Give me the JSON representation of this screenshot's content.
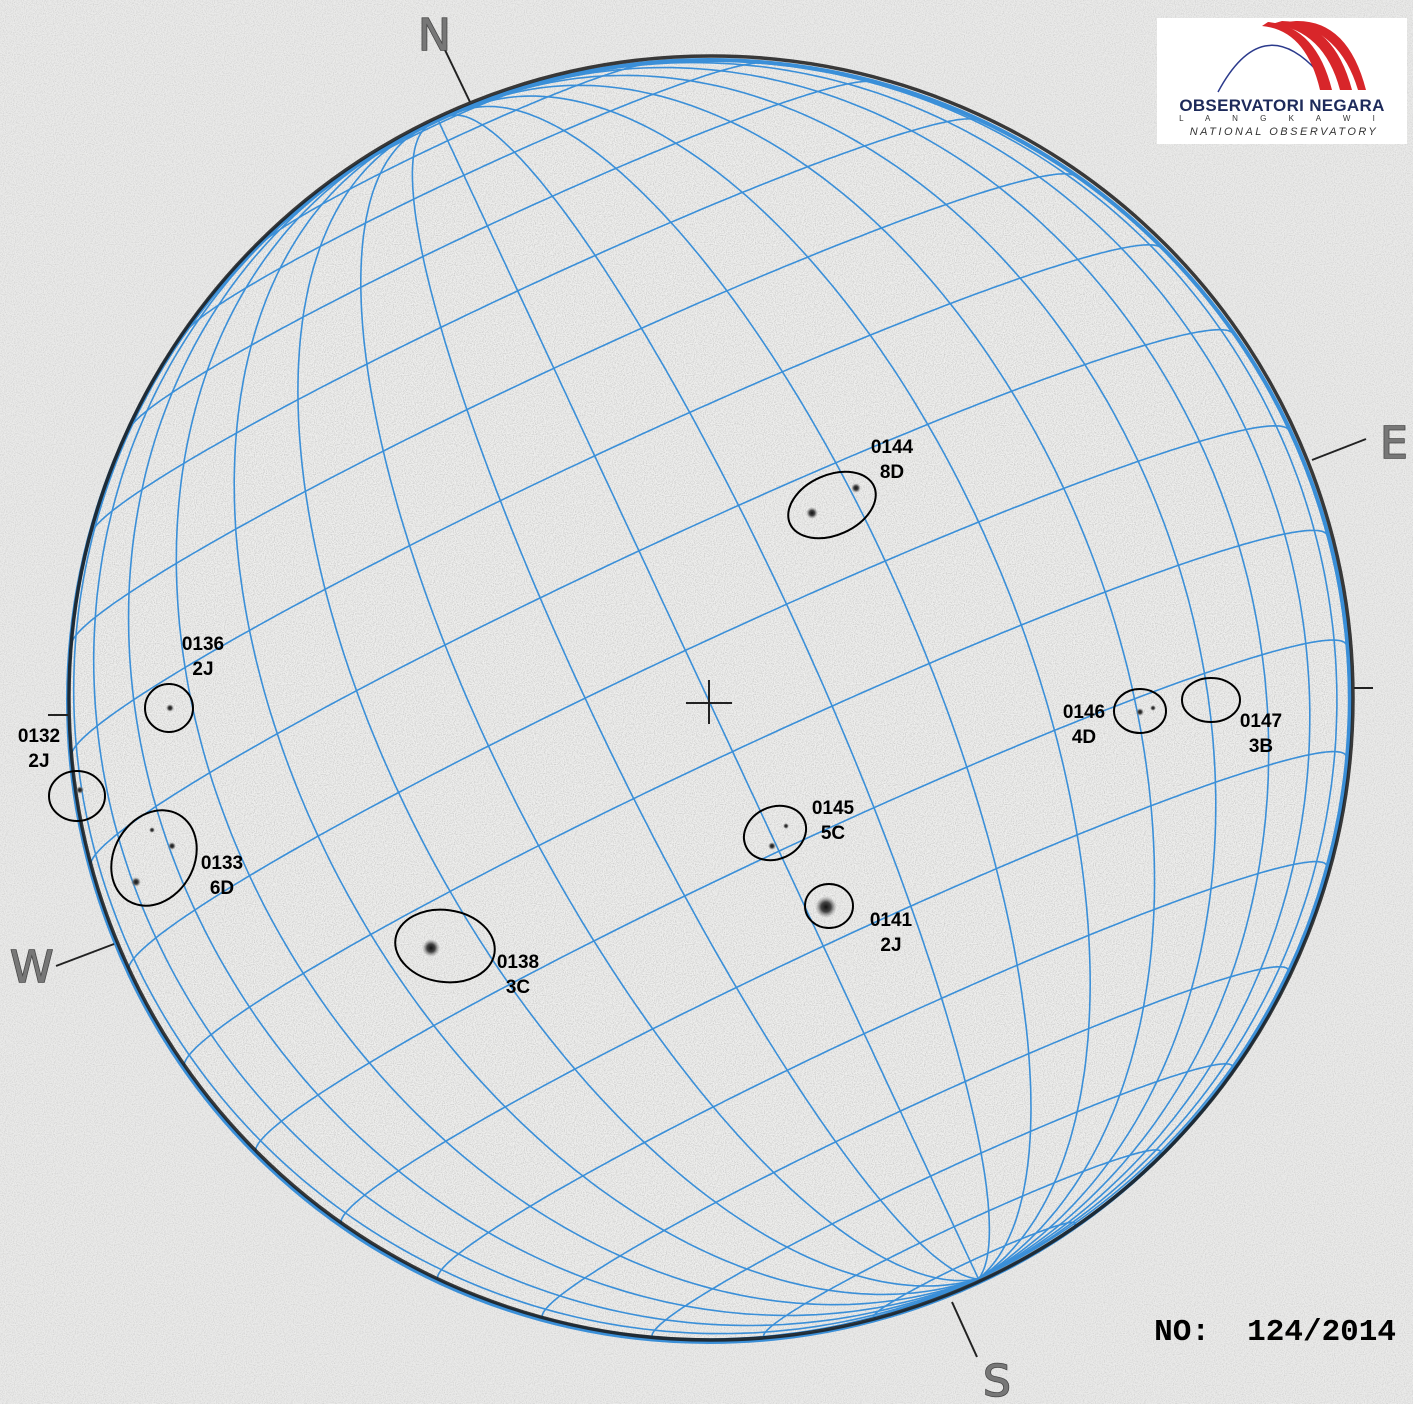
{
  "compass": {
    "north": "N",
    "south": "S",
    "east": "E",
    "west": "W"
  },
  "logo": {
    "title": "OBSERVATORI NEGARA",
    "subtitle": "L A N G K A W I",
    "english": "NATIONAL OBSERVATORY"
  },
  "sheet_number": "NO:  124/2014",
  "colors": {
    "grid": "#3a8fd8",
    "limb": "#1a1a1a",
    "background": "#ebebea",
    "logo_red": "#d8262a",
    "logo_navy": "#1d2a5a"
  },
  "regions": [
    {
      "number": "0144",
      "class": "8D"
    },
    {
      "number": "0136",
      "class": "2J"
    },
    {
      "number": "0132",
      "class": "2J"
    },
    {
      "number": "0133",
      "class": "6D"
    },
    {
      "number": "0138",
      "class": "3C"
    },
    {
      "number": "0145",
      "class": "5C"
    },
    {
      "number": "0141",
      "class": "2J"
    },
    {
      "number": "0146",
      "class": "4D"
    },
    {
      "number": "0147",
      "class": "3B"
    }
  ]
}
